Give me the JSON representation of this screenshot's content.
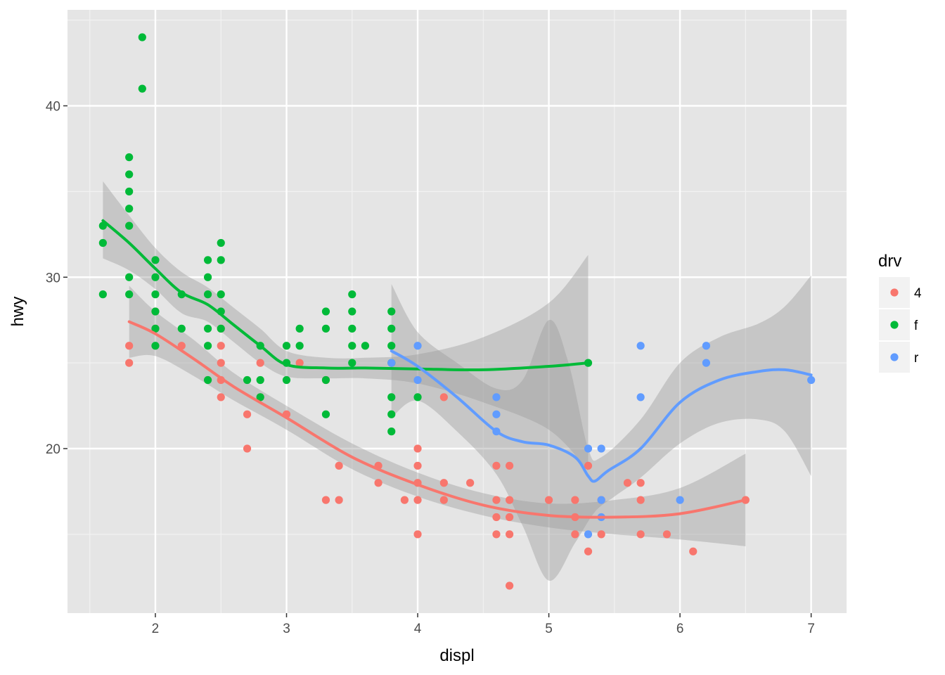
{
  "chart_data": {
    "type": "scatter",
    "title": "",
    "xlabel": "displ",
    "ylabel": "hwy",
    "xlim": [
      1.33,
      7.27
    ],
    "ylim": [
      10.4,
      45.6
    ],
    "x_ticks": [
      2,
      3,
      4,
      5,
      6,
      7
    ],
    "x_tick_labels": [
      "2",
      "3",
      "4",
      "5",
      "6",
      "7"
    ],
    "y_ticks": [
      20,
      30,
      40
    ],
    "y_tick_labels": [
      "20",
      "30",
      "40"
    ],
    "grid": true,
    "background": "#e5e5e5",
    "legend": {
      "title": "drv",
      "placement": "right",
      "entries": [
        {
          "label": "4",
          "color": "#f8766d"
        },
        {
          "label": "f",
          "color": "#00ba38"
        },
        {
          "label": "r",
          "color": "#619cff"
        }
      ]
    },
    "series": [
      {
        "key": "4",
        "color": "#f8766d",
        "points": [
          [
            1.8,
            26
          ],
          [
            1.8,
            25
          ],
          [
            2.0,
            28
          ],
          [
            2.0,
            27
          ],
          [
            2.2,
            26
          ],
          [
            2.5,
            27
          ],
          [
            2.5,
            26
          ],
          [
            2.5,
            25
          ],
          [
            2.5,
            24
          ],
          [
            2.5,
            23
          ],
          [
            2.7,
            22
          ],
          [
            2.7,
            20
          ],
          [
            2.8,
            25
          ],
          [
            2.8,
            23
          ],
          [
            3.0,
            22
          ],
          [
            3.1,
            25
          ],
          [
            3.3,
            24
          ],
          [
            3.3,
            17
          ],
          [
            3.4,
            17
          ],
          [
            3.4,
            19
          ],
          [
            3.7,
            19
          ],
          [
            3.7,
            18
          ],
          [
            3.9,
            17
          ],
          [
            4.0,
            20
          ],
          [
            4.0,
            19
          ],
          [
            4.0,
            18
          ],
          [
            4.0,
            17
          ],
          [
            4.0,
            15
          ],
          [
            4.2,
            23
          ],
          [
            4.2,
            18
          ],
          [
            4.2,
            17
          ],
          [
            4.4,
            18
          ],
          [
            4.6,
            19
          ],
          [
            4.6,
            17
          ],
          [
            4.6,
            16
          ],
          [
            4.6,
            15
          ],
          [
            4.7,
            19
          ],
          [
            4.7,
            17
          ],
          [
            4.7,
            16
          ],
          [
            4.7,
            15
          ],
          [
            4.7,
            12
          ],
          [
            5.0,
            17
          ],
          [
            5.2,
            17
          ],
          [
            5.2,
            16
          ],
          [
            5.2,
            15
          ],
          [
            5.3,
            19
          ],
          [
            5.3,
            14
          ],
          [
            5.4,
            17
          ],
          [
            5.4,
            15
          ],
          [
            5.6,
            18
          ],
          [
            5.7,
            18
          ],
          [
            5.7,
            17
          ],
          [
            5.7,
            15
          ],
          [
            5.9,
            15
          ],
          [
            6.1,
            14
          ],
          [
            6.5,
            17
          ]
        ],
        "smooth": [
          [
            1.8,
            27.4
          ],
          [
            2.0,
            26.7
          ],
          [
            2.3,
            25.2
          ],
          [
            2.6,
            23.6
          ],
          [
            3.0,
            21.8
          ],
          [
            3.5,
            19.5
          ],
          [
            4.0,
            17.9
          ],
          [
            4.5,
            16.7
          ],
          [
            5.0,
            16.1
          ],
          [
            5.5,
            16.0
          ],
          [
            6.0,
            16.2
          ],
          [
            6.5,
            17.0
          ]
        ],
        "band_upper": [
          [
            1.8,
            29.5
          ],
          [
            2.0,
            28.0
          ],
          [
            2.3,
            26.3
          ],
          [
            2.6,
            24.4
          ],
          [
            3.0,
            22.5
          ],
          [
            3.5,
            20.3
          ],
          [
            4.0,
            18.6
          ],
          [
            4.5,
            17.4
          ],
          [
            5.0,
            16.8
          ],
          [
            5.5,
            17.0
          ],
          [
            6.0,
            17.7
          ],
          [
            6.5,
            19.7
          ]
        ],
        "band_lower": [
          [
            1.8,
            25.3
          ],
          [
            2.0,
            25.4
          ],
          [
            2.3,
            24.2
          ],
          [
            2.6,
            22.8
          ],
          [
            3.0,
            21.1
          ],
          [
            3.5,
            18.8
          ],
          [
            4.0,
            17.2
          ],
          [
            4.5,
            16.1
          ],
          [
            5.0,
            15.4
          ],
          [
            5.5,
            15.0
          ],
          [
            6.0,
            14.7
          ],
          [
            6.5,
            14.3
          ]
        ]
      },
      {
        "key": "f",
        "color": "#00ba38",
        "points": [
          [
            1.6,
            33
          ],
          [
            1.6,
            32
          ],
          [
            1.6,
            29
          ],
          [
            1.8,
            37
          ],
          [
            1.8,
            36
          ],
          [
            1.8,
            35
          ],
          [
            1.8,
            34
          ],
          [
            1.8,
            33
          ],
          [
            1.8,
            30
          ],
          [
            1.8,
            29
          ],
          [
            1.9,
            44
          ],
          [
            1.9,
            41
          ],
          [
            2.0,
            31
          ],
          [
            2.0,
            30
          ],
          [
            2.0,
            29
          ],
          [
            2.0,
            28
          ],
          [
            2.0,
            27
          ],
          [
            2.0,
            26
          ],
          [
            2.2,
            29
          ],
          [
            2.2,
            27
          ],
          [
            2.4,
            31
          ],
          [
            2.4,
            30
          ],
          [
            2.4,
            29
          ],
          [
            2.4,
            27
          ],
          [
            2.4,
            26
          ],
          [
            2.4,
            24
          ],
          [
            2.5,
            32
          ],
          [
            2.5,
            31
          ],
          [
            2.5,
            29
          ],
          [
            2.5,
            28
          ],
          [
            2.5,
            27
          ],
          [
            2.7,
            24
          ],
          [
            2.8,
            26
          ],
          [
            2.8,
            24
          ],
          [
            2.8,
            23
          ],
          [
            3.0,
            26
          ],
          [
            3.0,
            25
          ],
          [
            3.0,
            24
          ],
          [
            3.1,
            27
          ],
          [
            3.1,
            26
          ],
          [
            3.3,
            28
          ],
          [
            3.3,
            27
          ],
          [
            3.3,
            24
          ],
          [
            3.3,
            22
          ],
          [
            3.5,
            29
          ],
          [
            3.5,
            28
          ],
          [
            3.5,
            27
          ],
          [
            3.5,
            26
          ],
          [
            3.5,
            25
          ],
          [
            3.6,
            26
          ],
          [
            3.8,
            28
          ],
          [
            3.8,
            27
          ],
          [
            3.8,
            26
          ],
          [
            3.8,
            25
          ],
          [
            3.8,
            23
          ],
          [
            3.8,
            22
          ],
          [
            3.8,
            21
          ],
          [
            4.0,
            23
          ],
          [
            5.3,
            25
          ]
        ],
        "smooth": [
          [
            1.6,
            33.3
          ],
          [
            1.8,
            32.0
          ],
          [
            2.0,
            30.5
          ],
          [
            2.2,
            29.1
          ],
          [
            2.4,
            28.4
          ],
          [
            2.6,
            27.2
          ],
          [
            2.8,
            26.0
          ],
          [
            3.0,
            24.9
          ],
          [
            3.3,
            24.7
          ],
          [
            3.6,
            24.7
          ],
          [
            4.0,
            24.65
          ],
          [
            4.5,
            24.6
          ],
          [
            5.0,
            24.8
          ],
          [
            5.3,
            25.0
          ]
        ],
        "band_upper": [
          [
            1.6,
            35.6
          ],
          [
            1.8,
            33.6
          ],
          [
            2.0,
            31.7
          ],
          [
            2.2,
            30.3
          ],
          [
            2.4,
            29.4
          ],
          [
            2.6,
            28.2
          ],
          [
            2.8,
            27.0
          ],
          [
            3.0,
            25.7
          ],
          [
            3.3,
            25.3
          ],
          [
            3.6,
            25.3
          ],
          [
            4.0,
            25.5
          ],
          [
            4.5,
            26.5
          ],
          [
            5.0,
            28.5
          ],
          [
            5.3,
            31.3
          ]
        ],
        "band_lower": [
          [
            1.6,
            31.1
          ],
          [
            1.8,
            30.4
          ],
          [
            2.0,
            29.3
          ],
          [
            2.2,
            27.9
          ],
          [
            2.4,
            27.4
          ],
          [
            2.6,
            26.2
          ],
          [
            2.8,
            25.0
          ],
          [
            3.0,
            24.2
          ],
          [
            3.3,
            24.1
          ],
          [
            3.6,
            24.1
          ],
          [
            4.0,
            23.8
          ],
          [
            4.5,
            22.7
          ],
          [
            5.0,
            21.1
          ],
          [
            5.3,
            18.7
          ]
        ]
      },
      {
        "key": "r",
        "color": "#619cff",
        "points": [
          [
            3.8,
            25
          ],
          [
            4.0,
            26
          ],
          [
            4.0,
            24
          ],
          [
            4.6,
            23
          ],
          [
            4.6,
            22
          ],
          [
            4.6,
            21
          ],
          [
            5.3,
            20
          ],
          [
            5.3,
            15
          ],
          [
            5.4,
            20
          ],
          [
            5.4,
            17
          ],
          [
            5.4,
            16
          ],
          [
            5.7,
            26
          ],
          [
            5.7,
            23
          ],
          [
            6.0,
            17
          ],
          [
            6.2,
            26
          ],
          [
            6.2,
            25
          ],
          [
            7.0,
            24
          ]
        ],
        "smooth": [
          [
            3.8,
            25.7
          ],
          [
            4.0,
            24.8
          ],
          [
            4.3,
            23.0
          ],
          [
            4.6,
            21.0
          ],
          [
            4.8,
            20.4
          ],
          [
            5.0,
            20.2
          ],
          [
            5.2,
            19.5
          ],
          [
            5.3,
            18.4
          ],
          [
            5.35,
            18.1
          ],
          [
            5.45,
            18.7
          ],
          [
            5.7,
            20.0
          ],
          [
            6.0,
            22.7
          ],
          [
            6.3,
            24.0
          ],
          [
            6.6,
            24.5
          ],
          [
            6.8,
            24.6
          ],
          [
            7.0,
            24.3
          ]
        ],
        "band_upper": [
          [
            3.8,
            29.6
          ],
          [
            4.0,
            26.8
          ],
          [
            4.3,
            25.0
          ],
          [
            4.6,
            23.5
          ],
          [
            4.8,
            24.0
          ],
          [
            5.0,
            27.5
          ],
          [
            5.15,
            25.0
          ],
          [
            5.3,
            20.0
          ],
          [
            5.4,
            19.5
          ],
          [
            5.7,
            21.7
          ],
          [
            6.0,
            25.0
          ],
          [
            6.3,
            26.5
          ],
          [
            6.6,
            27.3
          ],
          [
            6.8,
            28.3
          ],
          [
            7.0,
            30.1
          ]
        ],
        "band_lower": [
          [
            3.8,
            21.8
          ],
          [
            4.0,
            22.8
          ],
          [
            4.3,
            21.0
          ],
          [
            4.6,
            18.5
          ],
          [
            4.8,
            15.5
          ],
          [
            5.0,
            12.3
          ],
          [
            5.2,
            14.5
          ],
          [
            5.35,
            16.3
          ],
          [
            5.5,
            17.2
          ],
          [
            5.7,
            18.3
          ],
          [
            6.0,
            20.3
          ],
          [
            6.3,
            21.5
          ],
          [
            6.6,
            21.7
          ],
          [
            6.8,
            21.0
          ],
          [
            7.0,
            18.4
          ]
        ]
      }
    ]
  }
}
